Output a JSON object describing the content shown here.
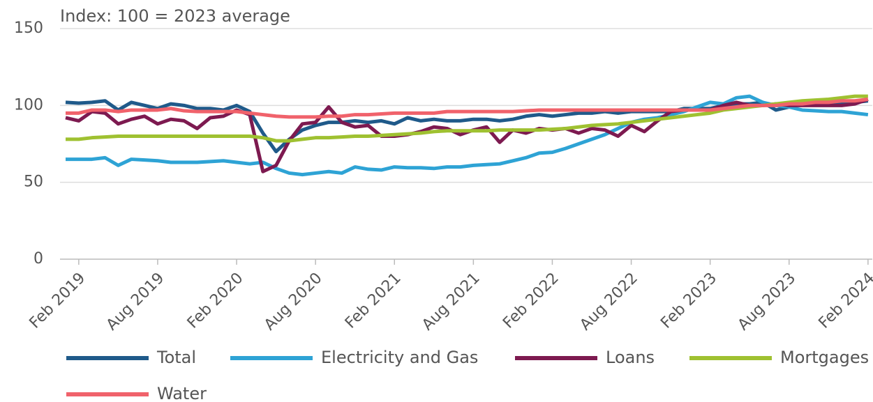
{
  "chart_data": {
    "type": "line",
    "title": "Index: 100 = 2023 average",
    "categories": [
      null,
      "Feb 2019",
      null,
      null,
      null,
      null,
      null,
      "Aug 2019",
      null,
      null,
      null,
      null,
      null,
      "Feb 2020",
      null,
      null,
      null,
      null,
      null,
      "Aug 2020",
      null,
      null,
      null,
      null,
      null,
      "Feb 2021",
      null,
      null,
      null,
      null,
      null,
      "Aug 2021",
      null,
      null,
      null,
      null,
      null,
      "Feb 2022",
      null,
      null,
      null,
      null,
      null,
      "Aug 2022",
      null,
      null,
      null,
      null,
      null,
      "Feb 2023",
      null,
      null,
      null,
      null,
      null,
      "Aug 2023",
      null,
      null,
      null,
      null,
      null,
      "Feb 2024"
    ],
    "series": [
      {
        "name": "Total",
        "color": "#1f5a8a",
        "values": [
          102,
          101.5,
          102,
          103,
          97,
          102,
          100,
          98,
          101,
          100,
          98,
          98,
          97,
          100,
          96,
          82,
          70,
          78,
          84,
          87,
          89,
          89,
          90,
          89,
          90,
          88,
          92,
          90,
          91,
          90,
          90,
          91,
          91,
          90,
          91,
          93,
          94,
          93,
          94,
          95,
          95,
          96,
          95,
          96,
          96,
          96,
          96,
          98,
          98,
          98,
          100,
          101,
          101,
          102,
          97,
          99,
          101,
          101,
          101,
          101,
          102,
          103
        ]
      },
      {
        "name": "Electricity and Gas",
        "color": "#2ea3d5",
        "values": [
          65,
          65,
          65,
          66,
          61,
          65,
          64.5,
          64,
          63,
          63,
          63,
          63.5,
          64,
          63,
          62,
          63,
          59,
          56,
          55,
          56,
          57,
          56,
          60,
          58.5,
          58,
          60,
          59.5,
          59.5,
          59,
          60,
          60,
          61,
          61.5,
          62,
          64,
          66,
          69,
          69.5,
          72,
          75,
          78,
          81,
          85,
          89,
          91,
          92,
          94,
          96,
          99,
          102,
          101,
          105,
          106,
          102,
          100,
          99,
          97,
          96.5,
          96,
          96,
          95,
          94
        ]
      },
      {
        "name": "Loans",
        "color": "#7d1a50",
        "values": [
          92,
          90,
          96,
          95,
          88,
          91,
          93,
          88,
          91,
          90,
          85,
          92,
          93,
          97,
          94,
          57,
          61,
          77,
          88,
          89,
          99,
          89,
          86,
          87,
          80,
          80,
          81,
          83,
          86,
          85,
          81,
          84,
          86,
          76,
          84,
          82,
          85,
          84,
          85,
          82,
          85,
          84,
          80,
          87,
          83,
          90,
          96,
          97,
          97,
          97,
          100,
          102,
          100,
          100,
          101,
          100,
          100,
          100,
          100,
          100,
          101,
          104
        ]
      },
      {
        "name": "Mortgages",
        "color": "#9fc131",
        "values": [
          78,
          78,
          79,
          79.5,
          80,
          80,
          80,
          80,
          80,
          80,
          80,
          80,
          80,
          80,
          80,
          79,
          77,
          77,
          78,
          79,
          79,
          79.5,
          80,
          80,
          80.5,
          81,
          81.5,
          82,
          83,
          83.5,
          83.5,
          83.5,
          83.5,
          84,
          84,
          84,
          84,
          84.5,
          85,
          86,
          87,
          87.5,
          88,
          89,
          90,
          91,
          92,
          93,
          94,
          95,
          97,
          98,
          99,
          100,
          101,
          102,
          103,
          103.5,
          104,
          105,
          106,
          106
        ]
      },
      {
        "name": "Water",
        "color": "#f0626b",
        "values": [
          95,
          95,
          97,
          97,
          96,
          97,
          97,
          97,
          98,
          96.5,
          96,
          96,
          96,
          96,
          95,
          94,
          93,
          92.5,
          92.5,
          92.5,
          93,
          93,
          94,
          94,
          94.5,
          95,
          95,
          95,
          95,
          96,
          96,
          96,
          96,
          96,
          96,
          96.5,
          97,
          97,
          97,
          97,
          97,
          97,
          97,
          97,
          97,
          97,
          97,
          97,
          97,
          97,
          98,
          99,
          100,
          100,
          100,
          101,
          101,
          102,
          102,
          103,
          103,
          104
        ]
      }
    ],
    "ylim": [
      0,
      150
    ],
    "yticks": [
      0,
      50,
      100,
      150
    ],
    "grid": true
  }
}
